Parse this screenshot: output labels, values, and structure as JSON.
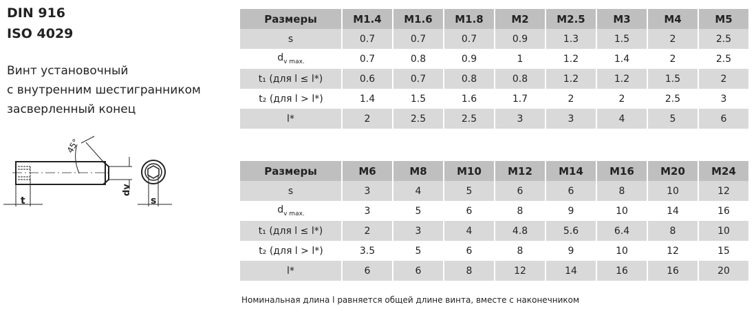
{
  "title": {
    "line1": "DIN 916",
    "line2": "ISO 4029"
  },
  "description": [
    "Винт установочный",
    "с внутренним шестигранником",
    "засверленный конец"
  ],
  "drawing": {
    "angle_label": "45°",
    "labels": [
      "t",
      "dv",
      "s"
    ]
  },
  "tables": [
    {
      "header": [
        "Размеры",
        "M1.4",
        "M1.6",
        "M1.8",
        "M2",
        "M2.5",
        "M3",
        "M4",
        "M5"
      ],
      "rows": [
        {
          "label": "s",
          "values": [
            "0.7",
            "0.7",
            "0.7",
            "0.9",
            "1.3",
            "1.5",
            "2",
            "2.5"
          ]
        },
        {
          "label": "d",
          "sub": "v max.",
          "values": [
            "0.7",
            "0.8",
            "0.9",
            "1",
            "1.2",
            "1.4",
            "2",
            "2.5"
          ]
        },
        {
          "label": "t₁ (для l ≤ l*)",
          "values": [
            "0.6",
            "0.7",
            "0.8",
            "0.8",
            "1.2",
            "1.2",
            "1.5",
            "2"
          ]
        },
        {
          "label": "t₂ (для l > l*)",
          "values": [
            "1.4",
            "1.5",
            "1.6",
            "1.7",
            "2",
            "2",
            "2.5",
            "3"
          ]
        },
        {
          "label": "l*",
          "values": [
            "2",
            "2.5",
            "2.5",
            "3",
            "3",
            "4",
            "5",
            "6"
          ]
        }
      ]
    },
    {
      "header": [
        "Размеры",
        "M6",
        "M8",
        "M10",
        "M12",
        "M14",
        "M16",
        "M20",
        "M24"
      ],
      "rows": [
        {
          "label": "s",
          "values": [
            "3",
            "4",
            "5",
            "6",
            "6",
            "8",
            "10",
            "12"
          ]
        },
        {
          "label": "d",
          "sub": "v max.",
          "values": [
            "3",
            "5",
            "6",
            "8",
            "9",
            "10",
            "14",
            "16"
          ]
        },
        {
          "label": "t₁ (для l ≤ l*)",
          "values": [
            "2",
            "3",
            "4",
            "4.8",
            "5.6",
            "6.4",
            "8",
            "10"
          ]
        },
        {
          "label": "t₂ (для l > l*)",
          "values": [
            "3.5",
            "5",
            "6",
            "8",
            "9",
            "10",
            "12",
            "15"
          ]
        },
        {
          "label": "l*",
          "values": [
            "6",
            "6",
            "8",
            "12",
            "14",
            "16",
            "16",
            "20"
          ]
        }
      ]
    }
  ],
  "footnote": "Номинальная длина l равняется общей длине винта, вместе с наконечником"
}
